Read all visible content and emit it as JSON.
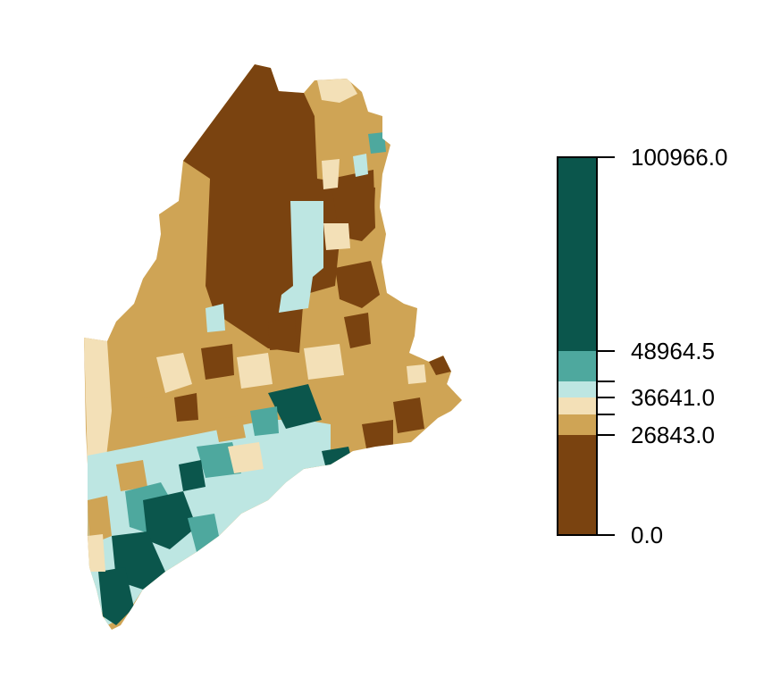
{
  "legend": {
    "breaks": [
      0.0,
      26843.0,
      36641.0,
      48964.5,
      100966.0
    ],
    "tick_labels": [
      "100966.0",
      "48964.5",
      "36641.0",
      "26843.0",
      "0.0"
    ],
    "classes": [
      {
        "color": "#7a4310"
      },
      {
        "color": "#cfa455"
      },
      {
        "color": "#f3e0b7"
      },
      {
        "color": "#bde6e2"
      },
      {
        "color": "#4ea89e"
      },
      {
        "color": "#0b564c"
      }
    ]
  }
}
